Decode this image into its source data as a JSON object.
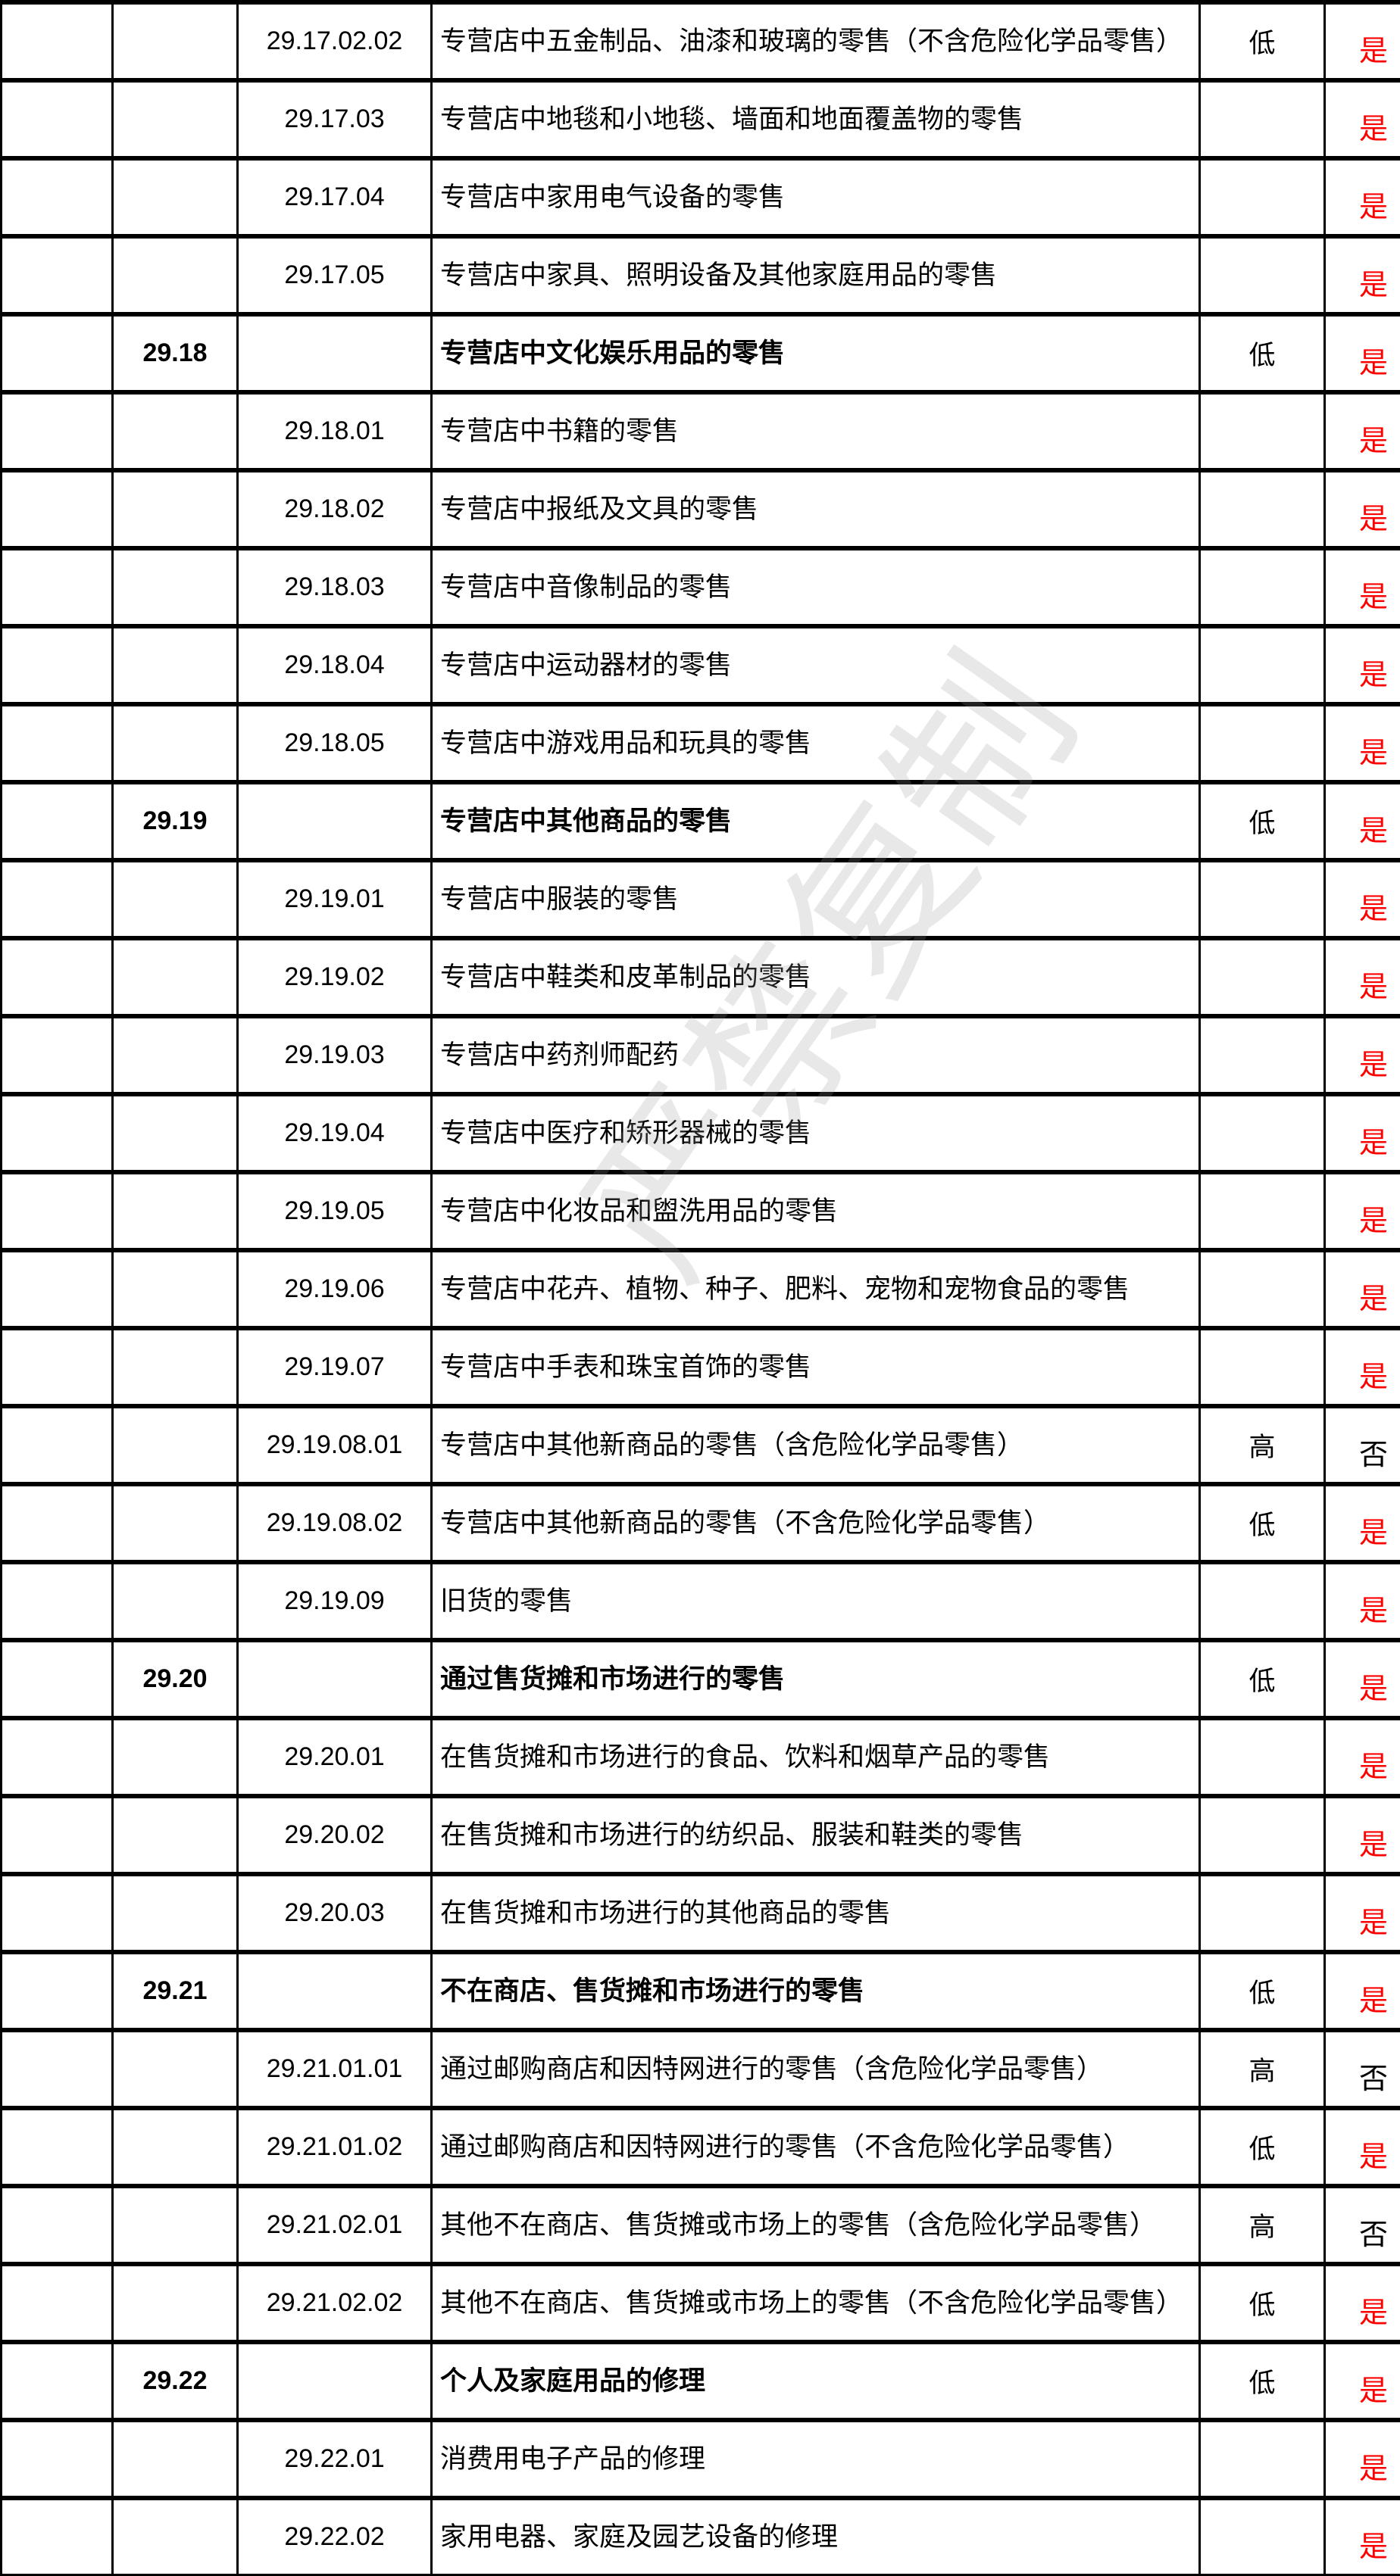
{
  "colors": {
    "yes": "#ff0000",
    "no": "#000000"
  },
  "watermark": "严禁复制",
  "rows": [
    {
      "group": "",
      "code": "29.17.02.02",
      "desc": "专营店中五金制品、油漆和玻璃的零售（不含危险化学品零售）",
      "risk": "低",
      "flag": "是"
    },
    {
      "group": "",
      "code": "29.17.03",
      "desc": "专营店中地毯和小地毯、墙面和地面覆盖物的零售",
      "risk": "",
      "flag": "是"
    },
    {
      "group": "",
      "code": "29.17.04",
      "desc": "专营店中家用电气设备的零售",
      "risk": "",
      "flag": "是"
    },
    {
      "group": "",
      "code": "29.17.05",
      "desc": "专营店中家具、照明设备及其他家庭用品的零售",
      "risk": "",
      "flag": "是"
    },
    {
      "group": "29.18",
      "code": "",
      "desc": "专营店中文化娱乐用品的零售",
      "risk": "低",
      "flag": "是",
      "bold": true
    },
    {
      "group": "",
      "code": "29.18.01",
      "desc": "专营店中书籍的零售",
      "risk": "",
      "flag": "是"
    },
    {
      "group": "",
      "code": "29.18.02",
      "desc": "专营店中报纸及文具的零售",
      "risk": "",
      "flag": "是"
    },
    {
      "group": "",
      "code": "29.18.03",
      "desc": "专营店中音像制品的零售",
      "risk": "",
      "flag": "是"
    },
    {
      "group": "",
      "code": "29.18.04",
      "desc": "专营店中运动器材的零售",
      "risk": "",
      "flag": "是"
    },
    {
      "group": "",
      "code": "29.18.05",
      "desc": "专营店中游戏用品和玩具的零售",
      "risk": "",
      "flag": "是"
    },
    {
      "group": "29.19",
      "code": "",
      "desc": "专营店中其他商品的零售",
      "risk": "低",
      "flag": "是",
      "bold": true
    },
    {
      "group": "",
      "code": "29.19.01",
      "desc": "专营店中服装的零售",
      "risk": "",
      "flag": "是"
    },
    {
      "group": "",
      "code": "29.19.02",
      "desc": "专营店中鞋类和皮革制品的零售",
      "risk": "",
      "flag": "是"
    },
    {
      "group": "",
      "code": "29.19.03",
      "desc": "专营店中药剂师配药",
      "risk": "",
      "flag": "是"
    },
    {
      "group": "",
      "code": "29.19.04",
      "desc": "专营店中医疗和矫形器械的零售",
      "risk": "",
      "flag": "是"
    },
    {
      "group": "",
      "code": "29.19.05",
      "desc": "专营店中化妆品和盥洗用品的零售",
      "risk": "",
      "flag": "是"
    },
    {
      "group": "",
      "code": "29.19.06",
      "desc": "专营店中花卉、植物、种子、肥料、宠物和宠物食品的零售",
      "risk": "",
      "flag": "是"
    },
    {
      "group": "",
      "code": "29.19.07",
      "desc": "专营店中手表和珠宝首饰的零售",
      "risk": "",
      "flag": "是"
    },
    {
      "group": "",
      "code": "29.19.08.01",
      "desc": "专营店中其他新商品的零售（含危险化学品零售）",
      "risk": "高",
      "flag": "否"
    },
    {
      "group": "",
      "code": "29.19.08.02",
      "desc": "专营店中其他新商品的零售（不含危险化学品零售）",
      "risk": "低",
      "flag": "是"
    },
    {
      "group": "",
      "code": "29.19.09",
      "desc": "旧货的零售",
      "risk": "",
      "flag": "是"
    },
    {
      "group": "29.20",
      "code": "",
      "desc": "通过售货摊和市场进行的零售",
      "risk": "低",
      "flag": "是",
      "bold": true
    },
    {
      "group": "",
      "code": "29.20.01",
      "desc": "在售货摊和市场进行的食品、饮料和烟草产品的零售",
      "risk": "",
      "flag": "是"
    },
    {
      "group": "",
      "code": "29.20.02",
      "desc": "在售货摊和市场进行的纺织品、服装和鞋类的零售",
      "risk": "",
      "flag": "是"
    },
    {
      "group": "",
      "code": "29.20.03",
      "desc": "在售货摊和市场进行的其他商品的零售",
      "risk": "",
      "flag": "是"
    },
    {
      "group": "29.21",
      "code": "",
      "desc": "不在商店、售货摊和市场进行的零售",
      "risk": "低",
      "flag": "是",
      "bold": true
    },
    {
      "group": "",
      "code": "29.21.01.01",
      "desc": "通过邮购商店和因特网进行的零售（含危险化学品零售）",
      "risk": "高",
      "flag": "否"
    },
    {
      "group": "",
      "code": "29.21.01.02",
      "desc": "通过邮购商店和因特网进行的零售（不含危险化学品零售）",
      "risk": "低",
      "flag": "是"
    },
    {
      "group": "",
      "code": "29.21.02.01",
      "desc": "其他不在商店、售货摊或市场上的零售（含危险化学品零售）",
      "risk": "高",
      "flag": "否"
    },
    {
      "group": "",
      "code": "29.21.02.02",
      "desc": "其他不在商店、售货摊或市场上的零售（不含危险化学品零售）",
      "risk": "低",
      "flag": "是"
    },
    {
      "group": "29.22",
      "code": "",
      "desc": "个人及家庭用品的修理",
      "risk": "低",
      "flag": "是",
      "bold": true
    },
    {
      "group": "",
      "code": "29.22.01",
      "desc": "消费用电子产品的修理",
      "risk": "",
      "flag": "是"
    },
    {
      "group": "",
      "code": "29.22.02",
      "desc": "家用电器、家庭及园艺设备的修理",
      "risk": "",
      "flag": "是"
    }
  ]
}
